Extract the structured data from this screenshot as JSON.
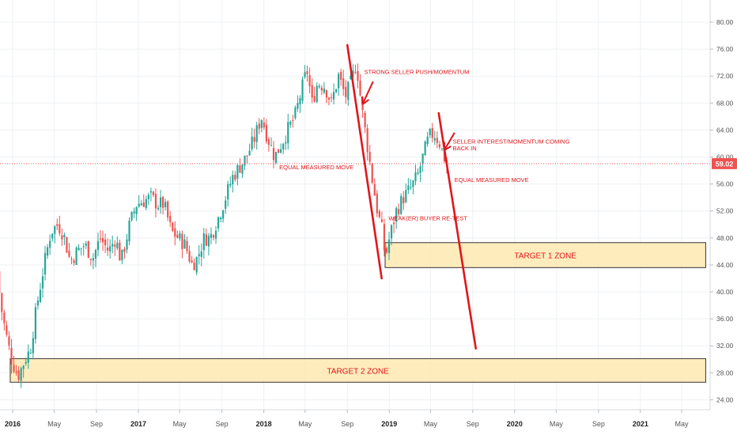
{
  "chart_data": {
    "type": "candlestick",
    "title": "",
    "xlabel": "",
    "ylabel": "",
    "grid": true,
    "y_axis_side": "right",
    "ylim": [
      22,
      82
    ],
    "y_ticks": [
      24,
      28,
      32,
      36,
      40,
      44,
      48,
      52,
      56,
      60,
      64,
      68,
      72,
      76,
      80
    ],
    "x_range": [
      "2015-11-20",
      "2021-07-10"
    ],
    "x_ticks": [
      {
        "date": "2016-01-01",
        "label": "2016",
        "bold": true
      },
      {
        "date": "2016-05-01",
        "label": "May",
        "bold": false
      },
      {
        "date": "2016-09-01",
        "label": "Sep",
        "bold": false
      },
      {
        "date": "2017-01-01",
        "label": "2017",
        "bold": true
      },
      {
        "date": "2017-05-01",
        "label": "May",
        "bold": false
      },
      {
        "date": "2017-09-01",
        "label": "Sep",
        "bold": false
      },
      {
        "date": "2018-01-01",
        "label": "2018",
        "bold": true
      },
      {
        "date": "2018-05-01",
        "label": "May",
        "bold": false
      },
      {
        "date": "2018-09-01",
        "label": "Sep",
        "bold": false
      },
      {
        "date": "2019-01-01",
        "label": "2019",
        "bold": true
      },
      {
        "date": "2019-05-01",
        "label": "May",
        "bold": false
      },
      {
        "date": "2019-09-01",
        "label": "Sep",
        "bold": false
      },
      {
        "date": "2020-01-01",
        "label": "2020",
        "bold": true
      },
      {
        "date": "2020-05-01",
        "label": "May",
        "bold": false
      },
      {
        "date": "2020-09-01",
        "label": "Sep",
        "bold": false
      },
      {
        "date": "2021-01-01",
        "label": "2021",
        "bold": true
      },
      {
        "date": "2021-05-01",
        "label": "May",
        "bold": false
      }
    ],
    "candle_period": "weekly",
    "price_path": [
      [
        "2015-11-20",
        43.0
      ],
      [
        "2015-12-01",
        38.0
      ],
      [
        "2015-12-15",
        34.0
      ],
      [
        "2016-01-01",
        30.0
      ],
      [
        "2016-01-20",
        27.5
      ],
      [
        "2016-02-10",
        30.0
      ],
      [
        "2016-02-25",
        31.5
      ],
      [
        "2016-03-15",
        38.0
      ],
      [
        "2016-04-05",
        44.0
      ],
      [
        "2016-04-25",
        49.0
      ],
      [
        "2016-05-15",
        50.0
      ],
      [
        "2016-06-01",
        48.5
      ],
      [
        "2016-06-20",
        44.5
      ],
      [
        "2016-07-10",
        46.0
      ],
      [
        "2016-08-01",
        47.0
      ],
      [
        "2016-08-25",
        45.0
      ],
      [
        "2016-09-15",
        48.0
      ],
      [
        "2016-10-10",
        46.0
      ],
      [
        "2016-10-30",
        48.0
      ],
      [
        "2016-11-15",
        44.5
      ],
      [
        "2016-12-10",
        50.0
      ],
      [
        "2016-12-30",
        53.0
      ],
      [
        "2017-01-20",
        53.5
      ],
      [
        "2017-02-10",
        54.0
      ],
      [
        "2017-03-01",
        53.0
      ],
      [
        "2017-03-20",
        53.0
      ],
      [
        "2017-04-10",
        49.0
      ],
      [
        "2017-05-01",
        48.0
      ],
      [
        "2017-05-20",
        47.0
      ],
      [
        "2017-06-10",
        44.0
      ],
      [
        "2017-06-25",
        45.0
      ],
      [
        "2017-07-15",
        48.0
      ],
      [
        "2017-08-01",
        48.0
      ],
      [
        "2017-08-25",
        51.0
      ],
      [
        "2017-09-15",
        54.0
      ],
      [
        "2017-10-05",
        57.0
      ],
      [
        "2017-10-25",
        58.5
      ],
      [
        "2017-11-15",
        60.0
      ],
      [
        "2017-12-10",
        63.0
      ],
      [
        "2017-12-28",
        66.0
      ],
      [
        "2018-01-15",
        63.0
      ],
      [
        "2018-02-05",
        60.0
      ],
      [
        "2018-02-25",
        62.0
      ],
      [
        "2018-03-15",
        64.0
      ],
      [
        "2018-04-05",
        66.0
      ],
      [
        "2018-04-25",
        70.0
      ],
      [
        "2018-05-10",
        73.0
      ],
      [
        "2018-05-25",
        68.0
      ],
      [
        "2018-06-10",
        71.0
      ],
      [
        "2018-07-01",
        70.5
      ],
      [
        "2018-07-20",
        68.0
      ],
      [
        "2018-08-10",
        72.0
      ],
      [
        "2018-08-30",
        69.0
      ],
      [
        "2018-09-15",
        71.0
      ],
      [
        "2018-10-01",
        74.0
      ],
      [
        "2018-10-10",
        70.0
      ],
      [
        "2018-10-20",
        66.0
      ],
      [
        "2018-11-01",
        62.0
      ],
      [
        "2018-11-15",
        57.0
      ],
      [
        "2018-12-01",
        52.0
      ],
      [
        "2018-12-15",
        49.0
      ],
      [
        "2018-12-24",
        45.0
      ],
      [
        "2019-01-05",
        48.0
      ],
      [
        "2019-01-25",
        52.0
      ],
      [
        "2019-02-15",
        54.0
      ],
      [
        "2019-03-10",
        55.5
      ],
      [
        "2019-03-30",
        57.5
      ],
      [
        "2019-04-15",
        60.5
      ],
      [
        "2019-04-30",
        63.0
      ],
      [
        "2019-05-15",
        63.5
      ],
      [
        "2019-06-01",
        62.0
      ],
      [
        "2019-06-10",
        60.5
      ],
      [
        "2019-06-20",
        59.02
      ]
    ],
    "last_price": {
      "value": 59.02,
      "label": "59.02"
    },
    "zones": [
      {
        "name": "TARGET 1 ZONE",
        "from_date": "2018-12-20",
        "to_date": "2021-07-10",
        "low": 43.6,
        "high": 47.3
      },
      {
        "name": "TARGET 2 ZONE",
        "from_date": "2015-12-25",
        "to_date": "2021-07-10",
        "low": 26.6,
        "high": 30.1
      }
    ],
    "trend_lines": [
      {
        "name": "drop-line-1",
        "from": [
          "2018-09-01",
          76.6
        ],
        "to": [
          "2018-12-10",
          42.0
        ]
      },
      {
        "name": "drop-line-2",
        "from": [
          "2019-05-25",
          66.5
        ],
        "to": [
          "2019-09-10",
          31.6
        ]
      }
    ],
    "arrows": [
      {
        "name": "seller-push-arrow",
        "from": [
          "2018-11-15",
          71.2
        ],
        "to": [
          "2018-10-15",
          67.8
        ]
      },
      {
        "name": "seller-return-arrow",
        "from": [
          "2019-07-10",
          63.6
        ],
        "to": [
          "2019-06-10",
          61.0
        ]
      }
    ],
    "annotations": [
      {
        "name": "strong-seller-annotation",
        "text": "STRONG SELLER PUSH/MOMENTUM",
        "date": "2018-10-20",
        "price": 72.3
      },
      {
        "name": "seller-interest-annotation",
        "text": "SELLER INTEREST/MOMENTUM COMING",
        "date": "2019-07-05",
        "price": 62.0
      },
      {
        "name": "seller-interest-annotation-line2",
        "text": "BACK IN",
        "date": "2019-07-05",
        "price": 61.0
      },
      {
        "name": "equal-move-left-annotation",
        "text": "EQUAL MEASURED MOVE",
        "date": "2018-02-15",
        "price": 58.2
      },
      {
        "name": "equal-move-right-annotation",
        "text": "EQUAL MEASURED MOVE",
        "date": "2019-07-10",
        "price": 56.3
      },
      {
        "name": "weaker-buyer-annotation",
        "text": "WEAK(ER) BUYER RE-TEST",
        "date": "2018-12-30",
        "price": 50.6
      }
    ],
    "colors": {
      "up": "#26a69a",
      "down": "#ef5350",
      "zone_fill": "#ffe9b2",
      "zone_border": "#333333",
      "drawing": "#e0161b",
      "annotation_text": "#e0161b",
      "grid": "#eef0f3",
      "axis_text": "#555555",
      "price_line": "#ef5350",
      "price_label_bg": "#ef5350"
    }
  }
}
